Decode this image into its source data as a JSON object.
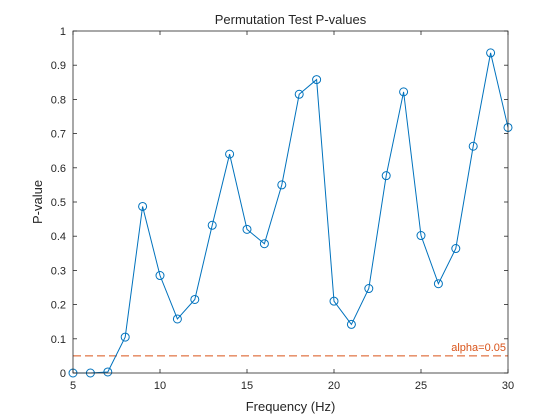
{
  "chart_data": {
    "type": "line",
    "title": "Permutation Test P-values",
    "xlabel": "Frequency (Hz)",
    "ylabel": "P-value",
    "xlim": [
      5,
      30
    ],
    "ylim": [
      0,
      1
    ],
    "xticks": [
      5,
      10,
      15,
      20,
      25,
      30
    ],
    "yticks": [
      0,
      0.1,
      0.2,
      0.3,
      0.4,
      0.5,
      0.6,
      0.7,
      0.8,
      0.9,
      1
    ],
    "grid": false,
    "series": [
      {
        "color": "#0072BD",
        "marker": "circle",
        "x": [
          5,
          6,
          7,
          8,
          9,
          10,
          11,
          12,
          13,
          14,
          15,
          16,
          17,
          18,
          19,
          20,
          21,
          22,
          23,
          24,
          25,
          26,
          27,
          28,
          29,
          30
        ],
        "y": [
          0.0,
          0.0,
          0.003,
          0.105,
          0.487,
          0.285,
          0.158,
          0.215,
          0.432,
          0.64,
          0.42,
          0.378,
          0.55,
          0.815,
          0.858,
          0.21,
          0.142,
          0.247,
          0.577,
          0.822,
          0.402,
          0.261,
          0.364,
          0.663,
          0.936,
          0.718
        ]
      }
    ],
    "threshold": {
      "value": 0.05,
      "label": "alpha=0.05",
      "color": "#D95319"
    }
  }
}
